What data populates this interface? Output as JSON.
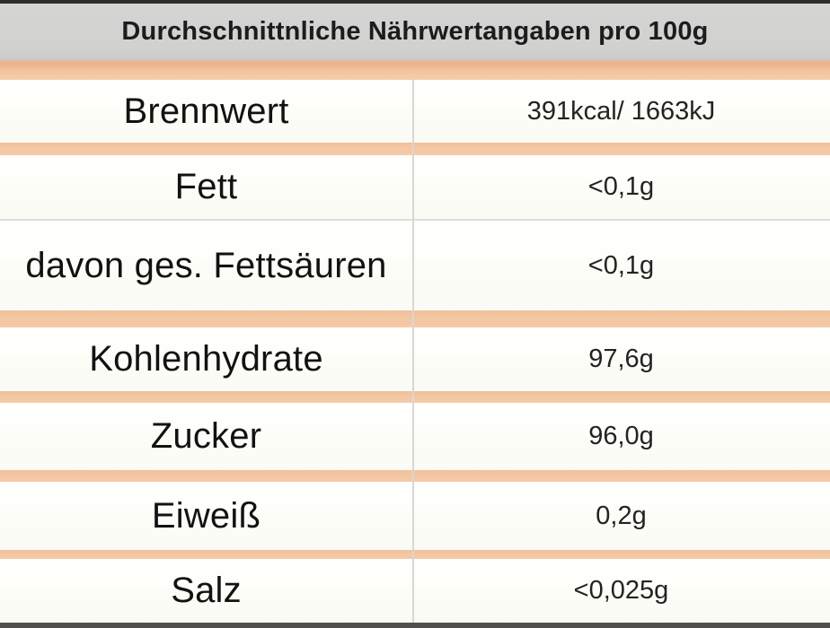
{
  "header": {
    "title": "Durchschnittnliche Nährwertangaben pro 100g"
  },
  "rows": [
    {
      "label": "Brennwert",
      "value": "391kcal/ 1663kJ"
    },
    {
      "label": "Fett",
      "value": "<0,1g"
    },
    {
      "label": "davon ges. Fettsäuren",
      "value": "<0,1g"
    },
    {
      "label": "Kohlenhydrate",
      "value": "97,6g"
    },
    {
      "label": "Zucker",
      "value": "96,0g"
    },
    {
      "label": "Eiweiß",
      "value": "0,2g"
    },
    {
      "label": "Salz",
      "value": "<0,025g"
    }
  ],
  "colors": {
    "accent_peach": "#f4c6a2",
    "header_gray": "#d1d1d0",
    "row_background": "#fdfdf9",
    "divider_gray": "#d9d7d3",
    "edge_dark": "#2d2d2b"
  }
}
